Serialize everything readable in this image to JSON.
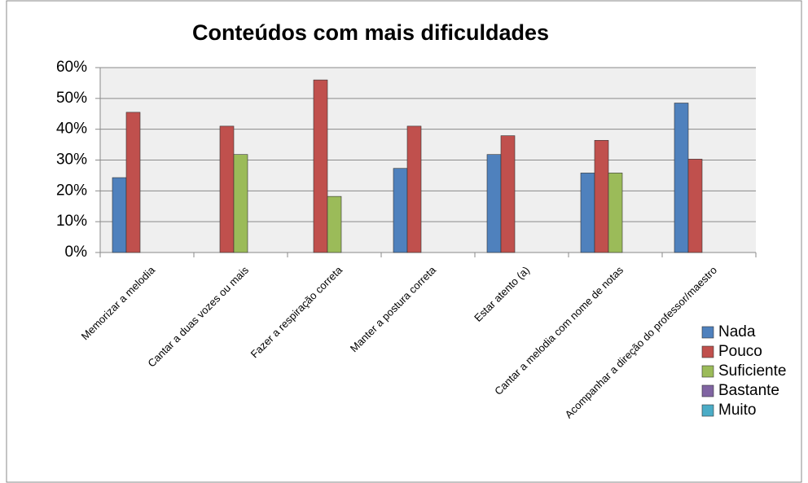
{
  "chart_data": {
    "type": "bar",
    "title": "Conteúdos com mais dificuldades",
    "categories": [
      "Memorizar a melodia",
      "Cantar a duas vozes ou mais",
      "Fazer a respiração correta",
      "Manter a postura correta",
      "Estar atento (a)",
      "Cantar a melodia com nome de notas",
      "Acompanhar a direção do professor/maestro"
    ],
    "series": [
      {
        "name": "Nada",
        "color": "#4f81bd",
        "values": [
          24.3,
          null,
          null,
          27.3,
          31.8,
          25.8,
          48.5
        ]
      },
      {
        "name": "Pouco",
        "color": "#c0504d",
        "values": [
          45.5,
          41,
          56,
          41,
          37.9,
          36.4,
          30.3
        ]
      },
      {
        "name": "Suficiente",
        "color": "#9bbb59",
        "values": [
          null,
          31.8,
          18.2,
          null,
          null,
          25.8,
          null
        ]
      },
      {
        "name": "Bastante",
        "color": "#8064a2",
        "values": [
          null,
          null,
          null,
          null,
          null,
          null,
          null
        ]
      },
      {
        "name": "Muito",
        "color": "#4bacc6",
        "values": [
          null,
          null,
          null,
          null,
          null,
          null,
          null
        ]
      }
    ],
    "ylim": [
      0,
      60
    ],
    "yticks": [
      {
        "value": 0,
        "label": "0%"
      },
      {
        "value": 10,
        "label": "10%"
      },
      {
        "value": 20,
        "label": "20%"
      },
      {
        "value": 30,
        "label": "30%"
      },
      {
        "value": 40,
        "label": "40%"
      },
      {
        "value": 50,
        "label": "50%"
      },
      {
        "value": 60,
        "label": "60%"
      }
    ],
    "grid": true,
    "legend": "right"
  }
}
